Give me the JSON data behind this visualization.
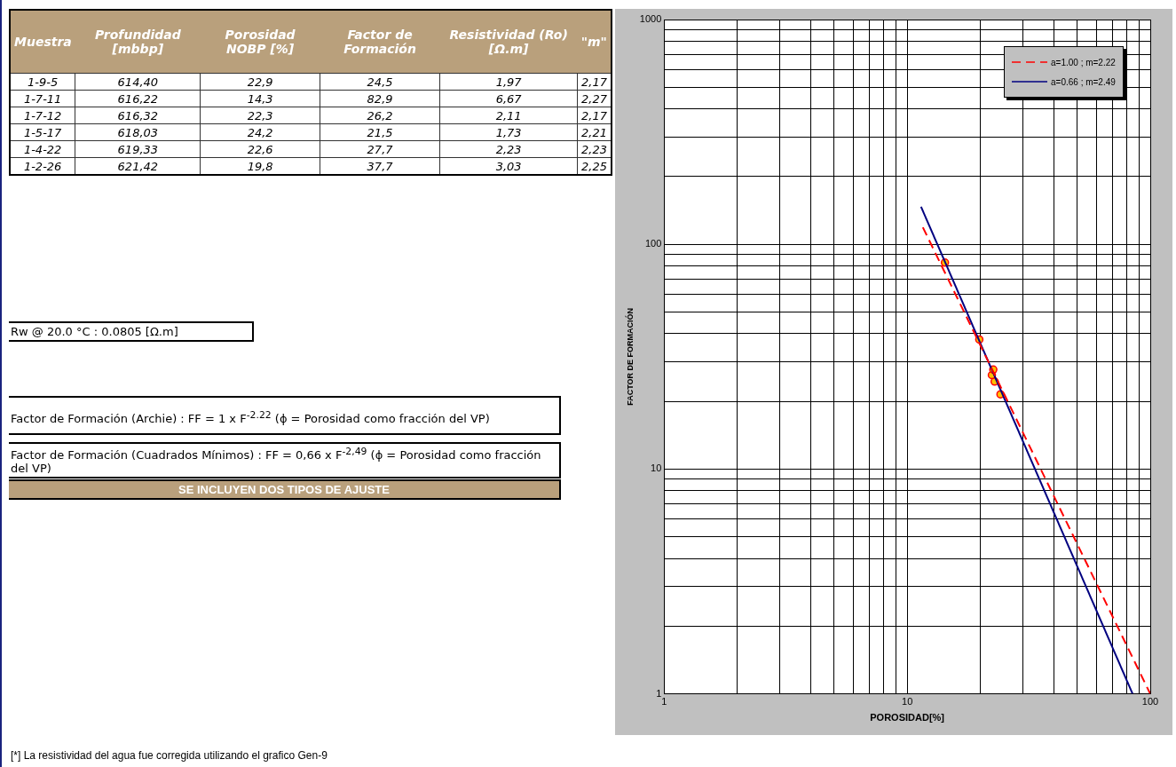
{
  "chart_data": {
    "type": "scatter",
    "xlabel": "POROSIDAD[%]",
    "ylabel": "FACTOR DE FORMACIÓN",
    "log": "xy",
    "grid": true,
    "legend": "top right",
    "annotations": [
      "Muestra",
      "Profundidad [mbbp]",
      "Porosidad NOBP [%]",
      "Factor de Formación",
      "Resistividad (Ro) [Ω.m]",
      "\"m\"",
      "1-9-5",
      "614,40",
      "22,9",
      "24,5",
      "1,97",
      "2,17",
      "1-7-11",
      "616,22",
      "14,3",
      "82,9",
      "6,67",
      "2,27",
      "1-7-12",
      "616,32",
      "22,3",
      "26,2",
      "2,11",
      "2,17",
      "1-5-17",
      "618,03",
      "24,2",
      "21,5",
      "1,73",
      "2,21",
      "1-4-22",
      "619,33",
      "22,6",
      "27,7",
      "2,23",
      "2,23",
      "1-2-26",
      "621,42",
      "19,8",
      "37,7",
      "3,03",
      "2,25",
      "Rw @ 20.0 °C : 0.0805 [Ω.m]",
      "Factor de Formación  (Archie) : FF = 1 x F$^{-2.22}$  (ϕ = Porosidad como fracción del VP)",
      "Factor de Formación  (Cuadrados Mínimos) : FF = 0,66 x F$^{-2,49}$   (ϕ = Porosidad como fracción del VP)",
      "SE INCLUYEN DOS TIPOS DE AJUSTE",
      "[*] La resistividad del agua fue corregida utilizando el grafico Gen-9"
    ],
    "xlim": [
      1,
      100
    ],
    "ylim": [
      1,
      1000
    ],
    "xticks": [
      1,
      {
        "value": 2,
        "label": null
      },
      {
        "value": 3,
        "label": null
      },
      {
        "value": 4,
        "label": null
      },
      {
        "value": 5,
        "label": null
      },
      {
        "value": 6,
        "label": null
      },
      {
        "value": 7,
        "label": null
      },
      {
        "value": 8,
        "label": null
      },
      {
        "value": 9,
        "label": null
      },
      10,
      {
        "value": 20,
        "label": null
      },
      {
        "value": 30,
        "label": null
      },
      {
        "value": 40,
        "label": null
      },
      {
        "value": 50,
        "label": null
      },
      {
        "value": 60,
        "label": null
      },
      {
        "value": 70,
        "label": null
      },
      {
        "value": 80,
        "label": null
      },
      {
        "value": 90,
        "label": null
      },
      100
    ],
    "yticks": [
      1,
      {
        "value": 2,
        "label": null
      },
      {
        "value": 3,
        "label": null
      },
      {
        "value": 4,
        "label": null
      },
      {
        "value": 5,
        "label": null
      },
      {
        "value": 6,
        "label": null
      },
      {
        "value": 7,
        "label": null
      },
      {
        "value": 8,
        "label": null
      },
      {
        "value": 9,
        "label": null
      },
      10,
      {
        "value": 20,
        "label": null
      },
      {
        "value": 30,
        "label": null
      },
      {
        "value": 40,
        "label": null
      },
      {
        "value": 50,
        "label": null
      },
      {
        "value": 60,
        "label": null
      },
      {
        "value": 70,
        "label": null
      },
      {
        "value": 80,
        "label": null
      },
      {
        "value": 90,
        "label": null
      },
      100,
      {
        "value": 200,
        "label": null
      },
      {
        "value": 300,
        "label": null
      },
      {
        "value": 400,
        "label": null
      },
      {
        "value": 500,
        "label": null
      },
      {
        "value": 600,
        "label": null
      },
      {
        "value": 700,
        "label": null
      },
      {
        "value": 800,
        "label": null
      },
      {
        "value": 900,
        "label": null
      },
      1000
    ],
    "series": [
      {
        "type": "line",
        "name": "a=1.00 ; m=2.22",
        "color": "#ff0000",
        "line_style": "dashed",
        "x": [
          11.6,
          100
        ],
        "values": [
          119,
          1
        ]
      },
      {
        "type": "line",
        "name": "a=0.66 ; m=2.49",
        "color": "#000080",
        "line_style": "solid",
        "x": [
          11.4,
          84.6
        ],
        "values": [
          147,
          1
        ]
      },
      {
        "color": "#ffc000",
        "marker": "circle",
        "x": [
          22.9,
          14.3,
          22.3,
          24.2,
          22.6,
          19.8
        ],
        "values": [
          24.5,
          82.9,
          26.2,
          21.5,
          27.7,
          37.7
        ]
      }
    ]
  }
}
